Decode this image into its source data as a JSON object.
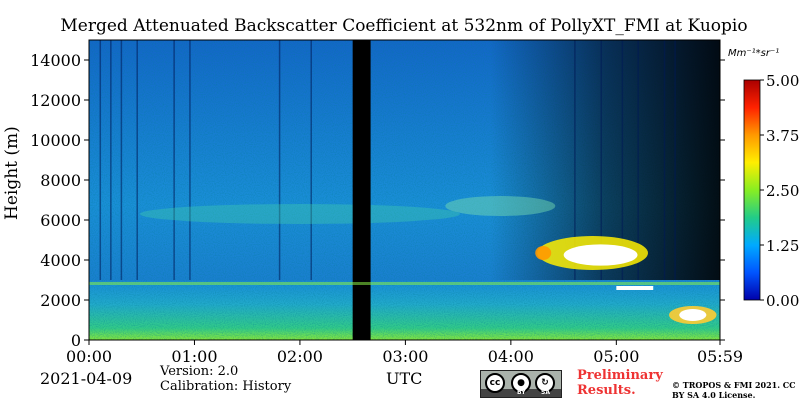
{
  "chart_data": {
    "type": "heatmap",
    "title": "Merged Attenuated Backscatter Coefficient at 532nm of PollyXT_FMI at Kuopio",
    "ylabel": "Height (m)",
    "xlabel": "UTC",
    "ylim": [
      0,
      15000
    ],
    "yticks": [
      "0",
      "2000",
      "4000",
      "6000",
      "8000",
      "10000",
      "12000",
      "14000"
    ],
    "ytick_values": [
      0,
      2000,
      4000,
      6000,
      8000,
      10000,
      12000,
      14000
    ],
    "xtick_labels": [
      "00:00",
      "01:00",
      "02:00",
      "03:00",
      "04:00",
      "05:00",
      "05:59"
    ],
    "xtick_values_hours": [
      0,
      1,
      2,
      3,
      4,
      5,
      5.983
    ],
    "xlim_hours": [
      0,
      5.983
    ],
    "colorbar": {
      "unit": "Mm⁻¹*sr⁻¹",
      "range": [
        0,
        5
      ],
      "tick_labels": [
        "0.00",
        "1.25",
        "2.50",
        "3.75",
        "5.00"
      ],
      "tick_values": [
        0,
        1.25,
        2.5,
        3.75,
        5.0
      ],
      "colormap": [
        "#0000aa",
        "#0055ff",
        "#00aaff",
        "#22cc88",
        "#88ee22",
        "#ffee00",
        "#ff9900",
        "#ff2200",
        "#aa0000"
      ]
    },
    "features": [
      {
        "name": "no-data gap",
        "start_hours": 2.5,
        "end_hours": 2.67,
        "color": "#000000"
      },
      {
        "name": "boundary layer",
        "height_top_m": 2900
      },
      {
        "name": "cloud layer",
        "start_hours": 4.25,
        "end_hours": 5.3,
        "height_m": [
          3500,
          5200
        ]
      },
      {
        "name": "low cloud",
        "start_hours": 5.0,
        "end_hours": 5.35,
        "height_m": [
          2500,
          2700
        ]
      },
      {
        "name": "near-surface cloud",
        "start_hours": 5.5,
        "end_hours": 5.95,
        "height_m": [
          800,
          1700
        ]
      }
    ]
  },
  "footer": {
    "date": "2021-04-09",
    "version": "Version: 2.0",
    "calibration": "Calibration: History",
    "utc": "UTC",
    "preliminary": "Preliminary Results.",
    "copyright": "© TROPOS & FMI 2021. CC BY SA 4.0 License.",
    "license_badge": {
      "cc": "cc",
      "by": "BY",
      "sa": "SA"
    }
  }
}
